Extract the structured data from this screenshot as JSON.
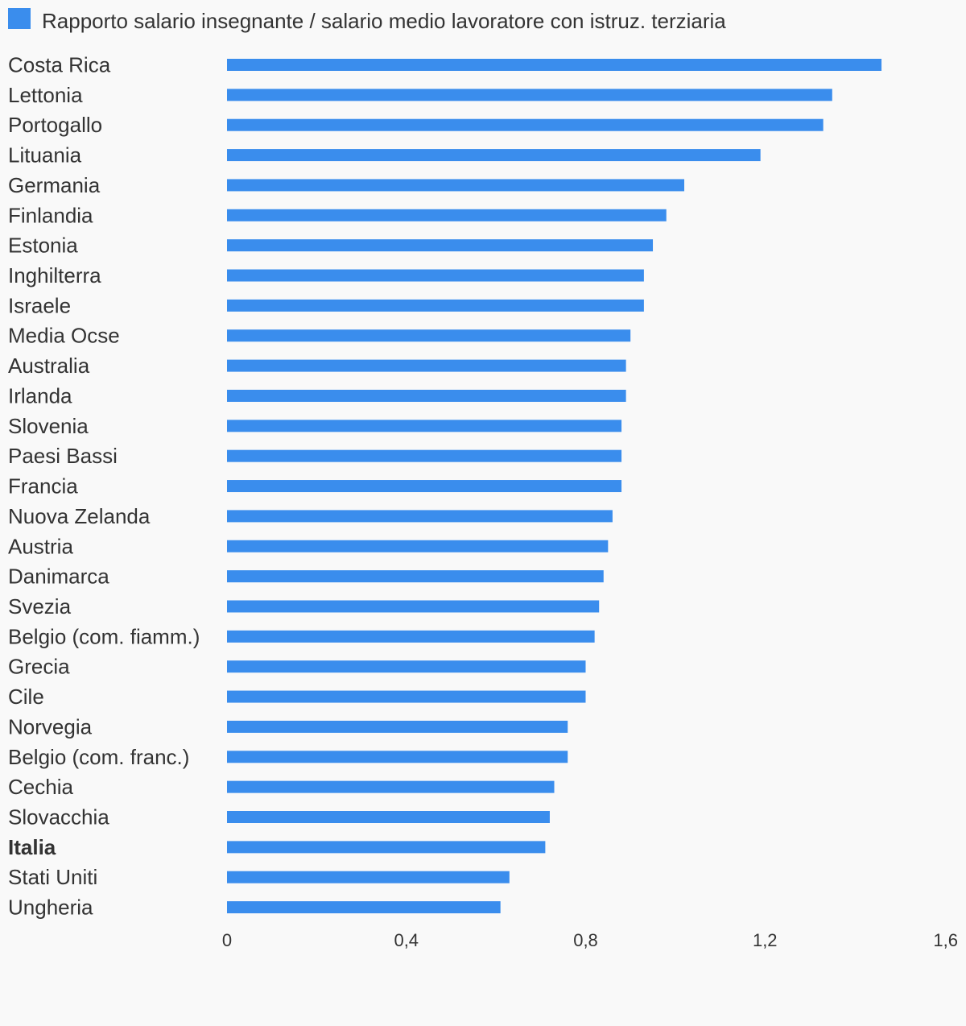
{
  "chart_data": {
    "type": "bar",
    "orientation": "horizontal",
    "series": [
      {
        "name": "Rapporto salario insegnante / salario medio lavoratore con istruz. terziaria",
        "color": "#3a8ded",
        "values": [
          1.46,
          1.35,
          1.33,
          1.19,
          1.02,
          0.98,
          0.95,
          0.93,
          0.93,
          0.9,
          0.89,
          0.89,
          0.88,
          0.88,
          0.88,
          0.86,
          0.85,
          0.84,
          0.83,
          0.82,
          0.8,
          0.8,
          0.76,
          0.76,
          0.73,
          0.72,
          0.71,
          0.63,
          0.61
        ]
      }
    ],
    "categories": [
      "Costa Rica",
      "Lettonia",
      "Portogallo",
      "Lituania",
      "Germania",
      "Finlandia",
      "Estonia",
      "Inghilterra",
      "Israele",
      "Media Ocse",
      "Australia",
      "Irlanda",
      "Slovenia",
      "Paesi Bassi",
      "Francia",
      "Nuova Zelanda",
      "Austria",
      "Danimarca",
      "Svezia",
      "Belgio (com. fiamm.)",
      "Grecia",
      "Cile",
      "Norvegia",
      "Belgio (com. franc.)",
      "Cechia",
      "Slovacchia",
      "Italia",
      "Stati Uniti",
      "Ungheria"
    ],
    "highlighted_category": "Italia",
    "xlim": [
      0,
      1.6
    ],
    "xticks": [
      "0",
      "0,4",
      "0,8",
      "1,2",
      "1,6"
    ],
    "xtick_values": [
      0,
      0.4,
      0.8,
      1.2,
      1.6
    ],
    "grid": false,
    "legend_position": "top-left"
  }
}
